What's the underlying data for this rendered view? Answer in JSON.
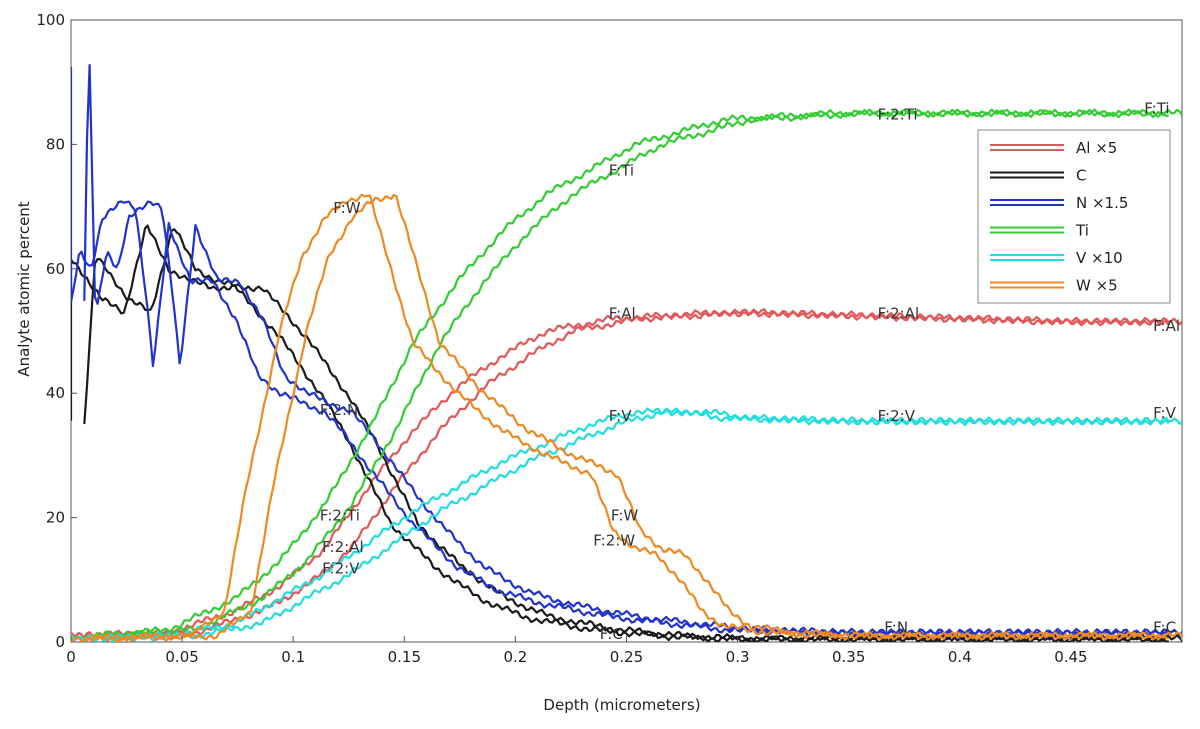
{
  "chart_data": {
    "type": "line",
    "title": "",
    "xlabel": "Depth (micrometers)",
    "ylabel": "Analyte atomic percent",
    "xlim": [
      0,
      0.5
    ],
    "ylim": [
      0,
      100
    ],
    "xticks": [
      0,
      0.05,
      0.1,
      0.15,
      0.2,
      0.25,
      0.3,
      0.35,
      0.4,
      0.45
    ],
    "xtick_labels": [
      "0",
      "0.05",
      "0.1",
      "0.15",
      "0.2",
      "0.25",
      "0.3",
      "0.35",
      "0.4",
      "0.45"
    ],
    "yticks": [
      0,
      20,
      40,
      60,
      80,
      100
    ],
    "ytick_labels": [
      "0",
      "20",
      "40",
      "60",
      "80",
      "100"
    ],
    "grid": false,
    "legend_position": "top-right",
    "series": [
      {
        "name": "Al ×5",
        "color": "#e0585a",
        "x": [
          0,
          0.05,
          0.08,
          0.1,
          0.12,
          0.14,
          0.16,
          0.18,
          0.2,
          0.22,
          0.25,
          0.3,
          0.35,
          0.4,
          0.45,
          0.5
        ],
        "values": [
          1,
          1.5,
          5,
          9,
          15,
          25,
          34,
          41,
          46,
          50,
          52,
          53,
          52.5,
          52,
          51.5,
          51.5
        ]
      },
      {
        "name": "C",
        "color": "#1a1a1a",
        "x": [
          0,
          0.005,
          0.01,
          0.02,
          0.03,
          0.04,
          0.05,
          0.06,
          0.07,
          0.08,
          0.09,
          0.1,
          0.11,
          0.12,
          0.13,
          0.14,
          0.15,
          0.17,
          0.19,
          0.21,
          0.24,
          0.27,
          0.3,
          0.35,
          0.4,
          0.45,
          0.5
        ],
        "values": [
          35,
          62,
          60,
          55,
          53,
          67,
          60,
          58,
          57,
          57,
          53,
          49,
          44,
          39,
          33,
          26,
          19,
          12,
          7,
          4,
          2,
          1,
          0.5,
          0.5,
          0.5,
          0.5,
          0.5
        ]
      },
      {
        "name": "N ×1.5",
        "color": "#2233cc",
        "x": [
          0,
          0.002,
          0.005,
          0.01,
          0.015,
          0.02,
          0.03,
          0.035,
          0.04,
          0.043,
          0.05,
          0.06,
          0.07,
          0.08,
          0.09,
          0.1,
          0.12,
          0.13,
          0.14,
          0.16,
          0.18,
          0.2,
          0.22,
          0.25,
          0.3,
          0.35,
          0.4,
          0.45,
          0.5
        ],
        "values": [
          55,
          98,
          52,
          63,
          60,
          68,
          71,
          70,
          55,
          44,
          67,
          58,
          58,
          52,
          43,
          40,
          37,
          33,
          28,
          19,
          12,
          8,
          6,
          4,
          2,
          1.5,
          1.5,
          1.5,
          1.5
        ]
      },
      {
        "name": "Ti",
        "color": "#33cc33",
        "x": [
          0,
          0.05,
          0.08,
          0.1,
          0.12,
          0.14,
          0.16,
          0.18,
          0.2,
          0.22,
          0.24,
          0.26,
          0.28,
          0.3,
          0.35,
          0.4,
          0.45,
          0.5
        ],
        "values": [
          0.5,
          2,
          7,
          13,
          22,
          34,
          48,
          58,
          66,
          72,
          76,
          80,
          82,
          84,
          85,
          85,
          85,
          85
        ]
      },
      {
        "name": "V ×10",
        "color": "#22dddd",
        "x": [
          0,
          0.05,
          0.08,
          0.1,
          0.12,
          0.14,
          0.16,
          0.18,
          0.2,
          0.22,
          0.24,
          0.26,
          0.28,
          0.3,
          0.35,
          0.4,
          0.45,
          0.5
        ],
        "values": [
          0.5,
          1,
          3,
          7,
          11,
          16,
          21,
          25,
          29,
          32,
          35,
          37,
          37,
          36,
          35.5,
          35.5,
          35.5,
          35.5
        ]
      },
      {
        "name": "W ×5",
        "color": "#ee8822",
        "x": [
          0,
          0.06,
          0.075,
          0.085,
          0.1,
          0.11,
          0.12,
          0.13,
          0.14,
          0.15,
          0.16,
          0.18,
          0.2,
          0.22,
          0.24,
          0.25,
          0.26,
          0.27,
          0.28,
          0.29,
          0.3,
          0.32,
          0.35,
          0.4,
          0.45,
          0.5
        ],
        "values": [
          0.5,
          1,
          5,
          25,
          50,
          62,
          68,
          71,
          72,
          60,
          48,
          40,
          34,
          30,
          27,
          18,
          15,
          14,
          10,
          5,
          2.5,
          1.5,
          1,
          1,
          1,
          1
        ]
      }
    ],
    "annotations": [
      {
        "text": "F:W",
        "x": 0.118,
        "y": 69
      },
      {
        "text": "F:Ti",
        "x": 0.242,
        "y": 75
      },
      {
        "text": "F:2:Ti",
        "x": 0.363,
        "y": 84
      },
      {
        "text": "F:Ti",
        "x": 0.483,
        "y": 85
      },
      {
        "text": "F:Al",
        "x": 0.242,
        "y": 52
      },
      {
        "text": "F:2:Al",
        "x": 0.363,
        "y": 52
      },
      {
        "text": "F:Al",
        "x": 0.487,
        "y": 50
      },
      {
        "text": "F:V",
        "x": 0.242,
        "y": 35.5
      },
      {
        "text": "F:2:V",
        "x": 0.363,
        "y": 35.5
      },
      {
        "text": "F:V",
        "x": 0.487,
        "y": 36
      },
      {
        "text": "F:2:N",
        "x": 0.112,
        "y": 36.5
      },
      {
        "text": "F:2:Ti",
        "x": 0.112,
        "y": 19.5
      },
      {
        "text": "F:2:Al",
        "x": 0.113,
        "y": 14.5
      },
      {
        "text": "F:2:V",
        "x": 0.113,
        "y": 11
      },
      {
        "text": "F:W",
        "x": 0.243,
        "y": 19.5
      },
      {
        "text": "F:2:W",
        "x": 0.235,
        "y": 15.5
      },
      {
        "text": "F:N",
        "x": 0.366,
        "y": 1.5
      },
      {
        "text": "F:C",
        "x": 0.487,
        "y": 1.5
      },
      {
        "text": "F:C",
        "x": 0.238,
        "y": 0.5
      }
    ]
  }
}
